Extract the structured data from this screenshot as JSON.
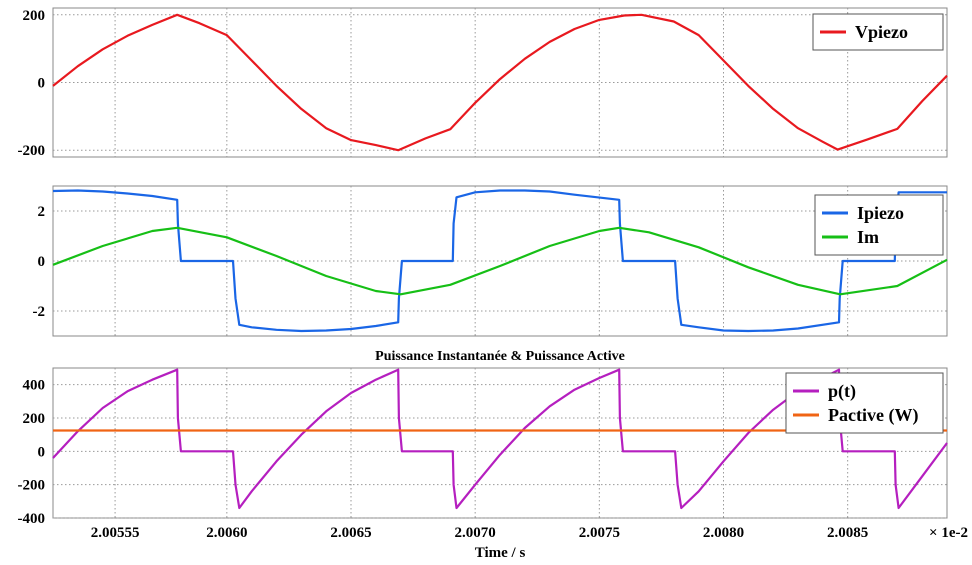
{
  "x_scale_label": "× 1e-2",
  "chart_data": [
    {
      "type": "line",
      "title": "",
      "xlabel": "",
      "ylabel": "",
      "xlim": [
        2.0053,
        2.0089
      ],
      "ylim": [
        -220,
        220
      ],
      "yticks": [
        -200,
        0,
        200
      ],
      "ytick_labels": [
        "-200",
        "0",
        "200"
      ],
      "grid": true,
      "legend": "top-right",
      "series": [
        {
          "name": "Vpiezo",
          "color": "#e8191f",
          "x": [
            2.0053,
            2.0054,
            2.0055,
            2.0056,
            2.0057,
            2.0058,
            2.00589,
            2.006,
            2.0061,
            2.0062,
            2.0063,
            2.0064,
            2.0065,
            2.0066,
            2.00669,
            2.0068,
            2.0069,
            2.007,
            2.0071,
            2.0072,
            2.0073,
            2.0074,
            2.0075,
            2.0076,
            2.00767,
            2.0078,
            2.0079,
            2.008,
            2.0081,
            2.0082,
            2.0083,
            2.0084,
            2.00846,
            2.00858,
            2.0087,
            2.0088,
            2.0089
          ],
          "y": [
            -10,
            48,
            98,
            138,
            170,
            200,
            175,
            140,
            65,
            -10,
            -78,
            -135,
            -170,
            -185,
            -200,
            -165,
            -138,
            -60,
            10,
            70,
            120,
            158,
            185,
            198,
            200,
            180,
            140,
            65,
            -10,
            -78,
            -135,
            -175,
            -198,
            -168,
            -137,
            -55,
            20
          ]
        }
      ]
    },
    {
      "type": "line",
      "title": "",
      "xlabel": "",
      "ylabel": "",
      "xlim": [
        2.0053,
        2.0089
      ],
      "ylim": [
        -3.0,
        3.0
      ],
      "yticks": [
        -2,
        0,
        2
      ],
      "ytick_labels": [
        "-2",
        "0",
        "2"
      ],
      "grid": true,
      "legend": "top-right",
      "series": [
        {
          "name": "Ipiezo",
          "color": "#1a66e6",
          "x": [
            2.0053,
            2.0054,
            2.0055,
            2.0056,
            2.0057,
            2.0058,
            2.005803,
            2.005815,
            2.006025,
            2.006035,
            2.00605,
            2.0061,
            2.0062,
            2.0063,
            2.0064,
            2.0065,
            2.0066,
            2.00669,
            2.006693,
            2.006705,
            2.00691,
            2.006913,
            2.006925,
            2.007,
            2.0071,
            2.0072,
            2.0073,
            2.0074,
            2.00758,
            2.007583,
            2.007595,
            2.007805,
            2.007815,
            2.00783,
            2.0079,
            2.008,
            2.0081,
            2.0082,
            2.0083,
            2.008465,
            2.008468,
            2.00848,
            2.00869,
            2.008693,
            2.008705,
            2.0089
          ],
          "y": [
            2.8,
            2.82,
            2.78,
            2.7,
            2.6,
            2.45,
            1.5,
            0.0,
            0.0,
            -1.5,
            -2.55,
            -2.65,
            -2.75,
            -2.8,
            -2.78,
            -2.72,
            -2.6,
            -2.45,
            -1.5,
            0.0,
            0.0,
            1.5,
            2.55,
            2.75,
            2.82,
            2.82,
            2.78,
            2.65,
            2.45,
            1.5,
            0.0,
            0.0,
            -1.5,
            -2.55,
            -2.65,
            -2.78,
            -2.8,
            -2.78,
            -2.7,
            -2.45,
            -1.5,
            0.0,
            0.0,
            1.5,
            2.75,
            2.75
          ]
        },
        {
          "name": "Im",
          "color": "#16bf16",
          "x": [
            2.0053,
            2.0055,
            2.0057,
            2.0058,
            2.006,
            2.0062,
            2.0064,
            2.0066,
            2.0067,
            2.0069,
            2.0071,
            2.0073,
            2.0075,
            2.00758,
            2.0077,
            2.0079,
            2.0081,
            2.0083,
            2.00847,
            2.0087,
            2.0089
          ],
          "y": [
            -0.15,
            0.6,
            1.2,
            1.33,
            0.95,
            0.2,
            -0.6,
            -1.2,
            -1.33,
            -0.95,
            -0.2,
            0.6,
            1.2,
            1.33,
            1.15,
            0.55,
            -0.25,
            -0.95,
            -1.33,
            -1.0,
            0.05
          ]
        }
      ]
    },
    {
      "type": "line",
      "title": "Puissance Instantanée & Puissance Active",
      "xlabel": "Time / s",
      "ylabel": "",
      "xlim": [
        2.0053,
        2.0089
      ],
      "ylim": [
        -400,
        500
      ],
      "yticks": [
        -400,
        -200,
        0,
        200,
        400
      ],
      "ytick_labels": [
        "-400",
        "-200",
        "0",
        "200",
        "400"
      ],
      "xticks": [
        2.00555,
        2.006,
        2.0065,
        2.007,
        2.0075,
        2.008,
        2.0085
      ],
      "xtick_labels": [
        "2.00555",
        "2.0060",
        "2.0065",
        "2.0070",
        "2.0075",
        "2.0080",
        "2.0085"
      ],
      "grid": true,
      "legend": "top-right",
      "series": [
        {
          "name": "p(t)",
          "color": "#b51fbf",
          "x": [
            2.0053,
            2.0054,
            2.0055,
            2.0056,
            2.0057,
            2.0058,
            2.005803,
            2.005815,
            2.006025,
            2.006035,
            2.00605,
            2.0061,
            2.0062,
            2.0063,
            2.0064,
            2.0065,
            2.0066,
            2.00669,
            2.006693,
            2.006705,
            2.00691,
            2.006913,
            2.006925,
            2.007,
            2.0071,
            2.0072,
            2.0073,
            2.0074,
            2.0075,
            2.00758,
            2.007583,
            2.007595,
            2.007805,
            2.007815,
            2.00783,
            2.0079,
            2.008,
            2.0081,
            2.0082,
            2.0083,
            2.0084,
            2.008465,
            2.008468,
            2.00848,
            2.00869,
            2.008693,
            2.008705,
            2.0088,
            2.0089
          ],
          "y": [
            -40,
            120,
            260,
            360,
            430,
            490,
            200,
            0,
            0,
            -200,
            -340,
            -240,
            -60,
            100,
            240,
            350,
            430,
            490,
            200,
            0,
            0,
            -200,
            -340,
            -200,
            -20,
            140,
            270,
            370,
            440,
            490,
            200,
            0,
            0,
            -200,
            -340,
            -240,
            -60,
            110,
            250,
            360,
            440,
            490,
            200,
            0,
            0,
            -200,
            -340,
            -150,
            50
          ]
        },
        {
          "name": "Pactive (W)",
          "color": "#f06414",
          "x": [
            2.0053,
            2.0089
          ],
          "y": [
            125,
            125
          ]
        }
      ]
    }
  ]
}
